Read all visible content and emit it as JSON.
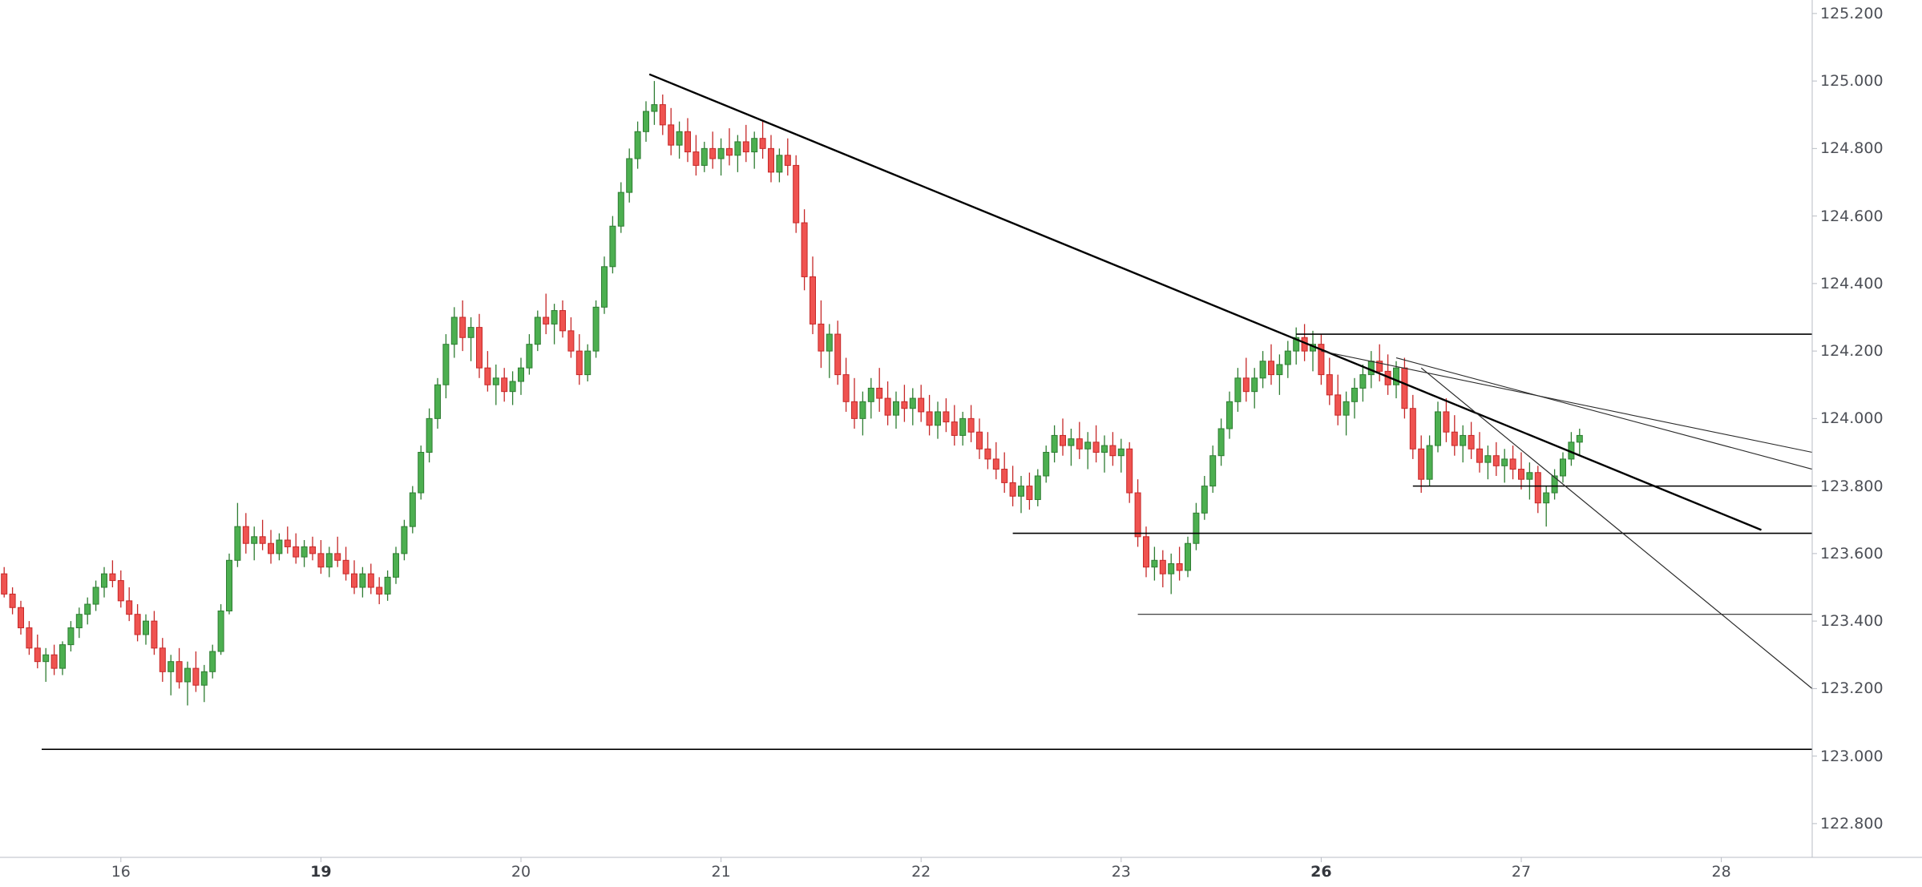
{
  "chart_data": {
    "type": "candlestick",
    "title": "",
    "description": "Intraday forex candlestick chart with descending trendlines and horizontal support/resistance levels",
    "colors": {
      "background": "#ffffff",
      "up_fill": "#4caf50",
      "up_border": "#2e7d32",
      "down_fill": "#ef5350",
      "down_border": "#c62828",
      "axis_line": "#b8bcc4",
      "axis_text": "#4c4f56",
      "drawing_line": "#000000",
      "thin_line": "#2a2a2a"
    },
    "y_axis": {
      "price_top": 125.24,
      "price_bottom": 122.7,
      "tick_interval": 0.2,
      "ticks": [
        125.2,
        125.0,
        124.8,
        124.6,
        124.4,
        124.2,
        124.0,
        123.8,
        123.6,
        123.4,
        123.2,
        123.0,
        122.8
      ]
    },
    "x_axis": {
      "labels": [
        {
          "label": "16",
          "index": 14,
          "bold": false
        },
        {
          "label": "19",
          "index": 38,
          "bold": true
        },
        {
          "label": "20",
          "index": 62,
          "bold": false
        },
        {
          "label": "21",
          "index": 86,
          "bold": false
        },
        {
          "label": "22",
          "index": 110,
          "bold": false
        },
        {
          "label": "23",
          "index": 134,
          "bold": false
        },
        {
          "label": "26",
          "index": 158,
          "bold": true
        },
        {
          "label": "27",
          "index": 182,
          "bold": false
        },
        {
          "label": "28",
          "index": 206,
          "bold": false
        }
      ]
    },
    "candles": [
      [
        123.54,
        123.56,
        123.47,
        123.48
      ],
      [
        123.48,
        123.5,
        123.42,
        123.44
      ],
      [
        123.44,
        123.46,
        123.36,
        123.38
      ],
      [
        123.38,
        123.4,
        123.3,
        123.32
      ],
      [
        123.32,
        123.36,
        123.26,
        123.28
      ],
      [
        123.28,
        123.32,
        123.22,
        123.3
      ],
      [
        123.3,
        123.33,
        123.24,
        123.26
      ],
      [
        123.26,
        123.34,
        123.24,
        123.33
      ],
      [
        123.33,
        123.4,
        123.31,
        123.38
      ],
      [
        123.38,
        123.44,
        123.35,
        123.42
      ],
      [
        123.42,
        123.47,
        123.39,
        123.45
      ],
      [
        123.45,
        123.52,
        123.43,
        123.5
      ],
      [
        123.5,
        123.56,
        123.47,
        123.54
      ],
      [
        123.54,
        123.58,
        123.5,
        123.52
      ],
      [
        123.52,
        123.55,
        123.44,
        123.46
      ],
      [
        123.46,
        123.5,
        123.4,
        123.42
      ],
      [
        123.42,
        123.45,
        123.34,
        123.36
      ],
      [
        123.36,
        123.42,
        123.33,
        123.4
      ],
      [
        123.4,
        123.43,
        123.3,
        123.32
      ],
      [
        123.32,
        123.35,
        123.22,
        123.25
      ],
      [
        123.25,
        123.3,
        123.18,
        123.28
      ],
      [
        123.28,
        123.32,
        123.2,
        123.22
      ],
      [
        123.22,
        123.28,
        123.15,
        123.26
      ],
      [
        123.26,
        123.31,
        123.19,
        123.21
      ],
      [
        123.21,
        123.27,
        123.16,
        123.25
      ],
      [
        123.25,
        123.33,
        123.23,
        123.31
      ],
      [
        123.31,
        123.45,
        123.3,
        123.43
      ],
      [
        123.43,
        123.6,
        123.42,
        123.58
      ],
      [
        123.58,
        123.75,
        123.56,
        123.68
      ],
      [
        123.68,
        123.72,
        123.6,
        123.63
      ],
      [
        123.63,
        123.68,
        123.58,
        123.65
      ],
      [
        123.65,
        123.7,
        123.61,
        123.63
      ],
      [
        123.63,
        123.67,
        123.57,
        123.6
      ],
      [
        123.6,
        123.66,
        123.58,
        123.64
      ],
      [
        123.64,
        123.68,
        123.6,
        123.62
      ],
      [
        123.62,
        123.66,
        123.57,
        123.59
      ],
      [
        123.59,
        123.64,
        123.56,
        123.62
      ],
      [
        123.62,
        123.65,
        123.58,
        123.6
      ],
      [
        123.6,
        123.64,
        123.54,
        123.56
      ],
      [
        123.56,
        123.62,
        123.53,
        123.6
      ],
      [
        123.6,
        123.65,
        123.56,
        123.58
      ],
      [
        123.58,
        123.62,
        123.52,
        123.54
      ],
      [
        123.54,
        123.58,
        123.48,
        123.5
      ],
      [
        123.5,
        123.56,
        123.47,
        123.54
      ],
      [
        123.54,
        123.57,
        123.48,
        123.5
      ],
      [
        123.5,
        123.53,
        123.45,
        123.48
      ],
      [
        123.48,
        123.55,
        123.46,
        123.53
      ],
      [
        123.53,
        123.62,
        123.51,
        123.6
      ],
      [
        123.6,
        123.7,
        123.58,
        123.68
      ],
      [
        123.68,
        123.8,
        123.66,
        123.78
      ],
      [
        123.78,
        123.92,
        123.76,
        123.9
      ],
      [
        123.9,
        124.03,
        123.87,
        124.0
      ],
      [
        124.0,
        124.12,
        123.97,
        124.1
      ],
      [
        124.1,
        124.25,
        124.06,
        124.22
      ],
      [
        124.22,
        124.33,
        124.18,
        124.3
      ],
      [
        124.3,
        124.35,
        124.2,
        124.24
      ],
      [
        124.24,
        124.3,
        124.17,
        124.27
      ],
      [
        124.27,
        124.31,
        124.12,
        124.15
      ],
      [
        124.15,
        124.2,
        124.08,
        124.1
      ],
      [
        124.1,
        124.16,
        124.04,
        124.12
      ],
      [
        124.12,
        124.15,
        124.05,
        124.08
      ],
      [
        124.08,
        124.14,
        124.04,
        124.11
      ],
      [
        124.11,
        124.18,
        124.07,
        124.15
      ],
      [
        124.15,
        124.25,
        124.13,
        124.22
      ],
      [
        124.22,
        124.32,
        124.2,
        124.3
      ],
      [
        124.3,
        124.37,
        124.25,
        124.28
      ],
      [
        124.28,
        124.34,
        124.22,
        124.32
      ],
      [
        124.32,
        124.35,
        124.24,
        124.26
      ],
      [
        124.26,
        124.3,
        124.18,
        124.2
      ],
      [
        124.2,
        124.25,
        124.1,
        124.13
      ],
      [
        124.13,
        124.22,
        124.11,
        124.2
      ],
      [
        124.2,
        124.35,
        124.18,
        124.33
      ],
      [
        124.33,
        124.48,
        124.31,
        124.45
      ],
      [
        124.45,
        124.6,
        124.43,
        124.57
      ],
      [
        124.57,
        124.7,
        124.55,
        124.67
      ],
      [
        124.67,
        124.8,
        124.64,
        124.77
      ],
      [
        124.77,
        124.88,
        124.74,
        124.85
      ],
      [
        124.85,
        124.94,
        124.82,
        124.91
      ],
      [
        124.91,
        125.0,
        124.87,
        124.93
      ],
      [
        124.93,
        124.96,
        124.84,
        124.87
      ],
      [
        124.87,
        124.92,
        124.78,
        124.81
      ],
      [
        124.81,
        124.88,
        124.77,
        124.85
      ],
      [
        124.85,
        124.89,
        124.76,
        124.79
      ],
      [
        124.79,
        124.84,
        124.72,
        124.75
      ],
      [
        124.75,
        124.82,
        124.73,
        124.8
      ],
      [
        124.8,
        124.85,
        124.74,
        124.77
      ],
      [
        124.77,
        124.83,
        124.72,
        124.8
      ],
      [
        124.8,
        124.86,
        124.75,
        124.78
      ],
      [
        124.78,
        124.84,
        124.73,
        124.82
      ],
      [
        124.82,
        124.87,
        124.76,
        124.79
      ],
      [
        124.79,
        124.85,
        124.74,
        124.83
      ],
      [
        124.83,
        124.88,
        124.77,
        124.8
      ],
      [
        124.8,
        124.84,
        124.7,
        124.73
      ],
      [
        124.73,
        124.8,
        124.7,
        124.78
      ],
      [
        124.78,
        124.83,
        124.72,
        124.75
      ],
      [
        124.75,
        124.78,
        124.55,
        124.58
      ],
      [
        124.58,
        124.62,
        124.38,
        124.42
      ],
      [
        124.42,
        124.48,
        124.25,
        124.28
      ],
      [
        124.28,
        124.35,
        124.15,
        124.2
      ],
      [
        124.2,
        124.28,
        124.12,
        124.25
      ],
      [
        124.25,
        124.29,
        124.1,
        124.13
      ],
      [
        124.13,
        124.18,
        124.02,
        124.05
      ],
      [
        124.05,
        124.12,
        123.97,
        124.0
      ],
      [
        124.0,
        124.08,
        123.95,
        124.05
      ],
      [
        124.05,
        124.12,
        124.0,
        124.09
      ],
      [
        124.09,
        124.15,
        124.02,
        124.06
      ],
      [
        124.06,
        124.11,
        123.98,
        124.01
      ],
      [
        124.01,
        124.08,
        123.97,
        124.05
      ],
      [
        124.05,
        124.1,
        123.99,
        124.03
      ],
      [
        124.03,
        124.09,
        123.98,
        124.06
      ],
      [
        124.06,
        124.1,
        123.99,
        124.02
      ],
      [
        124.02,
        124.07,
        123.95,
        123.98
      ],
      [
        123.98,
        124.05,
        123.94,
        124.02
      ],
      [
        124.02,
        124.06,
        123.96,
        123.99
      ],
      [
        123.99,
        124.04,
        123.92,
        123.95
      ],
      [
        123.95,
        124.02,
        123.92,
        124.0
      ],
      [
        124.0,
        124.04,
        123.93,
        123.96
      ],
      [
        123.96,
        124.0,
        123.88,
        123.91
      ],
      [
        123.91,
        123.96,
        123.85,
        123.88
      ],
      [
        123.88,
        123.93,
        123.82,
        123.85
      ],
      [
        123.85,
        123.9,
        123.78,
        123.81
      ],
      [
        123.81,
        123.86,
        123.74,
        123.77
      ],
      [
        123.77,
        123.83,
        123.72,
        123.8
      ],
      [
        123.8,
        123.84,
        123.73,
        123.76
      ],
      [
        123.76,
        123.85,
        123.74,
        123.83
      ],
      [
        123.83,
        123.92,
        123.81,
        123.9
      ],
      [
        123.9,
        123.98,
        123.87,
        123.95
      ],
      [
        123.95,
        124.0,
        123.89,
        123.92
      ],
      [
        123.92,
        123.97,
        123.86,
        123.94
      ],
      [
        123.94,
        123.99,
        123.88,
        123.91
      ],
      [
        123.91,
        123.96,
        123.85,
        123.93
      ],
      [
        123.93,
        123.98,
        123.87,
        123.9
      ],
      [
        123.9,
        123.95,
        123.84,
        123.92
      ],
      [
        123.92,
        123.96,
        123.86,
        123.89
      ],
      [
        123.89,
        123.94,
        123.84,
        123.91
      ],
      [
        123.91,
        123.93,
        123.75,
        123.78
      ],
      [
        123.78,
        123.82,
        123.62,
        123.65
      ],
      [
        123.65,
        123.68,
        123.53,
        123.56
      ],
      [
        123.56,
        123.62,
        123.52,
        123.58
      ],
      [
        123.58,
        123.61,
        123.5,
        123.54
      ],
      [
        123.54,
        123.6,
        123.48,
        123.57
      ],
      [
        123.57,
        123.62,
        123.52,
        123.55
      ],
      [
        123.55,
        123.65,
        123.53,
        123.63
      ],
      [
        123.63,
        123.75,
        123.61,
        123.72
      ],
      [
        123.72,
        123.83,
        123.7,
        123.8
      ],
      [
        123.8,
        123.92,
        123.78,
        123.89
      ],
      [
        123.89,
        124.0,
        123.86,
        123.97
      ],
      [
        123.97,
        124.08,
        123.94,
        124.05
      ],
      [
        124.05,
        124.15,
        124.02,
        124.12
      ],
      [
        124.12,
        124.18,
        124.05,
        124.08
      ],
      [
        124.08,
        124.15,
        124.03,
        124.12
      ],
      [
        124.12,
        124.2,
        124.09,
        124.17
      ],
      [
        124.17,
        124.22,
        124.1,
        124.13
      ],
      [
        124.13,
        124.19,
        124.07,
        124.16
      ],
      [
        124.16,
        124.23,
        124.12,
        124.2
      ],
      [
        124.2,
        124.27,
        124.16,
        124.24
      ],
      [
        124.24,
        124.28,
        124.17,
        124.2
      ],
      [
        124.2,
        124.26,
        124.14,
        124.22
      ],
      [
        124.22,
        124.25,
        124.1,
        124.13
      ],
      [
        124.13,
        124.18,
        124.04,
        124.07
      ],
      [
        124.07,
        124.13,
        123.98,
        124.01
      ],
      [
        124.01,
        124.08,
        123.95,
        124.05
      ],
      [
        124.05,
        124.12,
        124.0,
        124.09
      ],
      [
        124.09,
        124.16,
        124.05,
        124.13
      ],
      [
        124.13,
        124.2,
        124.09,
        124.17
      ],
      [
        124.17,
        124.22,
        124.11,
        124.14
      ],
      [
        124.14,
        124.19,
        124.07,
        124.1
      ],
      [
        124.1,
        124.17,
        124.06,
        124.15
      ],
      [
        124.15,
        124.18,
        124.0,
        124.03
      ],
      [
        124.03,
        124.07,
        123.88,
        123.91
      ],
      [
        123.91,
        123.95,
        123.78,
        123.82
      ],
      [
        123.82,
        123.95,
        123.8,
        123.92
      ],
      [
        123.92,
        124.05,
        123.9,
        124.02
      ],
      [
        124.02,
        124.06,
        123.93,
        123.96
      ],
      [
        123.96,
        124.01,
        123.89,
        123.92
      ],
      [
        123.92,
        123.98,
        123.87,
        123.95
      ],
      [
        123.95,
        123.99,
        123.88,
        123.91
      ],
      [
        123.91,
        123.96,
        123.84,
        123.87
      ],
      [
        123.87,
        123.92,
        123.82,
        123.89
      ],
      [
        123.89,
        123.93,
        123.83,
        123.86
      ],
      [
        123.86,
        123.91,
        123.81,
        123.88
      ],
      [
        123.88,
        123.92,
        123.82,
        123.85
      ],
      [
        123.85,
        123.9,
        123.79,
        123.82
      ],
      [
        123.82,
        123.87,
        123.76,
        123.84
      ],
      [
        123.84,
        123.86,
        123.72,
        123.75
      ],
      [
        123.75,
        123.8,
        123.68,
        123.78
      ],
      [
        123.78,
        123.85,
        123.76,
        123.83
      ],
      [
        123.83,
        123.9,
        123.81,
        123.88
      ],
      [
        123.88,
        123.96,
        123.86,
        123.93
      ],
      [
        123.93,
        123.97,
        123.89,
        123.95
      ]
    ],
    "overlays": {
      "trendlines": [
        {
          "label": "main-descending-trendline",
          "from_i": 77.4,
          "from_p": 125.02,
          "to_i": 210.8,
          "to_p": 123.67,
          "width": 2.4,
          "color": "#000000"
        },
        {
          "label": "fan-line-1",
          "from_i": 158,
          "from_p": 124.2,
          "to_i": 216.9,
          "to_p": 123.9,
          "width": 1.1,
          "color": "#2a2a2a"
        },
        {
          "label": "fan-line-2",
          "from_i": 167,
          "from_p": 124.18,
          "to_i": 216.9,
          "to_p": 123.85,
          "width": 1.1,
          "color": "#2a2a2a"
        },
        {
          "label": "steep-descending-line",
          "from_i": 170,
          "from_p": 124.15,
          "to_i": 216.9,
          "to_p": 123.2,
          "width": 1.2,
          "color": "#2a2a2a"
        }
      ],
      "horizontal_lines": [
        {
          "label": "resistance-level",
          "price": 124.25,
          "from_i": 155,
          "to_i": 216.9,
          "width": 1.6,
          "color": "#000000"
        },
        {
          "label": "minor-level",
          "price": 123.8,
          "from_i": 169,
          "to_i": 216.9,
          "width": 1.6,
          "color": "#000000"
        },
        {
          "label": "mid-level",
          "price": 123.66,
          "from_i": 121,
          "to_i": 216.9,
          "width": 1.6,
          "color": "#000000"
        },
        {
          "label": "lower-level",
          "price": 123.42,
          "from_i": 136,
          "to_i": 216.9,
          "width": 1.1,
          "color": "#2a2a2a"
        },
        {
          "label": "major-support",
          "price": 123.02,
          "from_i": 4.5,
          "to_i": 216.9,
          "width": 1.6,
          "color": "#000000"
        }
      ]
    }
  }
}
